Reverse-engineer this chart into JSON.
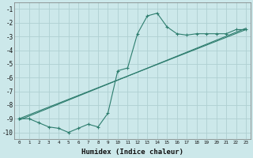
{
  "x_ticks": [
    0,
    1,
    2,
    3,
    4,
    5,
    6,
    7,
    8,
    9,
    10,
    11,
    12,
    13,
    14,
    15,
    16,
    17,
    18,
    19,
    20,
    21,
    22,
    23
  ],
  "line1_x": [
    0,
    1,
    2,
    3,
    4,
    5,
    6,
    7,
    8,
    9,
    10,
    11,
    12,
    13,
    14,
    15,
    16,
    17,
    18,
    19,
    20,
    21,
    22,
    23
  ],
  "line1_y": [
    -9.0,
    -9.0,
    -9.3,
    -9.6,
    -9.7,
    -10.0,
    -9.7,
    -9.4,
    -9.6,
    -8.6,
    -5.5,
    -5.3,
    -2.8,
    -1.5,
    -1.3,
    -2.3,
    -2.8,
    -2.9,
    -2.8,
    -2.8,
    -2.8,
    -2.8,
    -2.5,
    -2.5
  ],
  "line2_x": [
    0,
    23
  ],
  "line2_y": [
    -9.0,
    -2.5
  ],
  "line3_x": [
    0,
    23
  ],
  "line3_y": [
    -9.1,
    -2.4
  ],
  "color": "#2d7d6e",
  "bg_color": "#cce8ea",
  "grid_color": "#afd0d2",
  "xlabel": "Humidex (Indice chaleur)",
  "ylim": [
    -10.5,
    -0.5
  ],
  "xlim": [
    -0.5,
    23.5
  ],
  "yticks": [
    -1,
    -2,
    -3,
    -4,
    -5,
    -6,
    -7,
    -8,
    -9,
    -10
  ]
}
